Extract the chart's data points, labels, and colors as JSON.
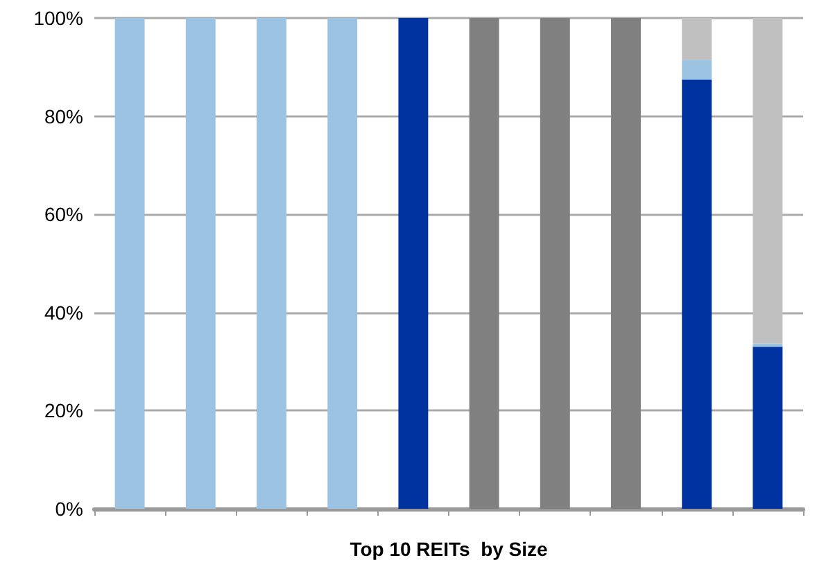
{
  "chart_data": {
    "type": "bar",
    "stacked": true,
    "xlabel": "Top 10 REITs  by Size",
    "categories": [
      null,
      null,
      null,
      null,
      null,
      null,
      null,
      null,
      null,
      null
    ],
    "series": [
      {
        "color": "#0033a0",
        "values": [
          0,
          0,
          0,
          0,
          100,
          0,
          0,
          0,
          87.5,
          33
        ]
      },
      {
        "color": "#9dc3e3",
        "values": [
          100,
          100,
          100,
          100,
          0,
          0,
          0,
          0,
          4,
          0.7
        ]
      },
      {
        "color": "#808080",
        "values": [
          0,
          0,
          0,
          0,
          0,
          100,
          100,
          100,
          0,
          0
        ]
      },
      {
        "color": "#c0c0c0",
        "values": [
          0,
          0,
          0,
          0,
          0,
          0,
          0,
          0,
          8.5,
          66.3
        ]
      }
    ],
    "ylim": [
      0,
      100
    ],
    "yticks": [
      {
        "value": 0,
        "label": "0%"
      },
      {
        "value": 20,
        "label": "20%"
      },
      {
        "value": 40,
        "label": "40%"
      },
      {
        "value": 60,
        "label": "60%"
      },
      {
        "value": 80,
        "label": "80%"
      },
      {
        "value": 100,
        "label": "100%"
      }
    ],
    "grid": "y"
  }
}
